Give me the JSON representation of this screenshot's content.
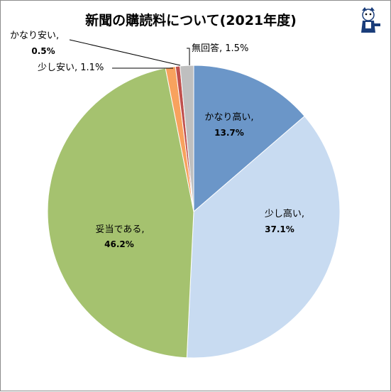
{
  "chart_data": {
    "type": "pie",
    "title": "新聞の購読料について(2021年度)",
    "slices": [
      {
        "label": "かなり高い",
        "value": 13.7,
        "display": "13.7%",
        "color": "#6b96c8"
      },
      {
        "label": "少し高い",
        "value": 37.1,
        "display": "37.1%",
        "color": "#c8dbf1"
      },
      {
        "label": "妥当である",
        "value": 46.2,
        "display": "46.2%",
        "color": "#a5c26f"
      },
      {
        "label": "少し安い",
        "value": 1.1,
        "display": "1.1%",
        "color": "#f8a25e"
      },
      {
        "label": "かなり安い",
        "value": 0.5,
        "display": "0.5%",
        "color": "#c0504d"
      },
      {
        "label": "無回答",
        "value": 1.5,
        "display": "1.5%",
        "color": "#bfbfbf"
      }
    ],
    "start_angle_deg": 0,
    "direction": "clockwise",
    "legend": "none"
  },
  "labels": {
    "s0_name": "かなり高い,",
    "s0_pct": "13.7%",
    "s1_name": "少し高い,",
    "s1_pct": "37.1%",
    "s2_name": "妥当である,",
    "s2_pct": "46.2%",
    "s3_text": "少し安い, 1.1%",
    "s4_name": "かなり安い,",
    "s4_pct": "0.5%",
    "s5_text": "無回答, 1.5%"
  },
  "logo": {
    "icon": "mascot-reporter-icon"
  }
}
